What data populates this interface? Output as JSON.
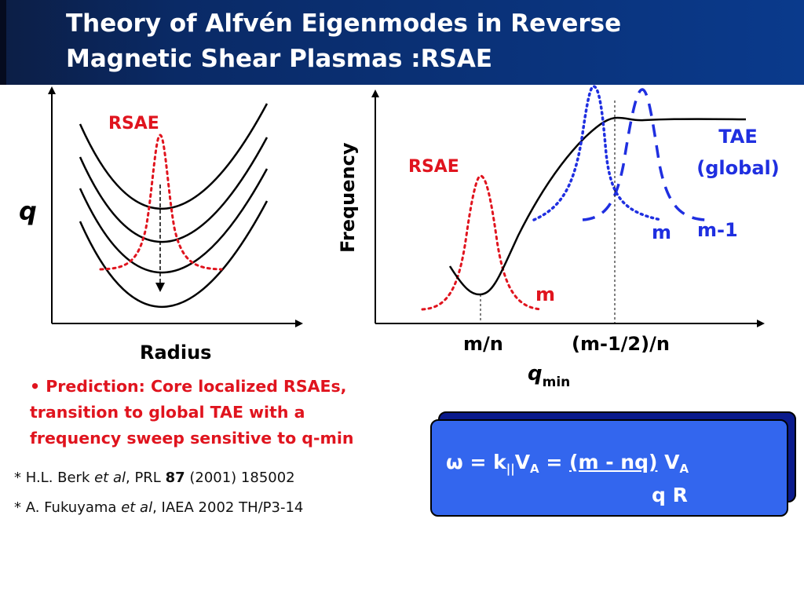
{
  "slide": {
    "title_line1": "Theory of Alfvén Eigenmodes in Reverse",
    "title_line2": "Magnetic Shear Plasmas :RSAE"
  },
  "left_panel": {
    "y_label": "q",
    "x_label": "Radius",
    "mode_label": "RSAE"
  },
  "right_panel": {
    "y_label": "Frequency",
    "rsae_label": "RSAE",
    "tae_label_line1": "TAE",
    "tae_label_line2": "(global)",
    "mode_m_lower": "m",
    "mode_m_upper": "m",
    "mode_m_minus_1": "m-1",
    "tick_left": "m/n",
    "tick_right": "(m-1/2)/n",
    "x_label_main": "q",
    "x_label_sub": "min"
  },
  "bullet": {
    "marker": "•",
    "line1": "Prediction: Core localized RSAEs,",
    "line2": "transition to global TAE with a",
    "line3": "frequency sweep sensitive to q-min"
  },
  "references": [
    {
      "prefix": "* H.L. Berk ",
      "etal": "et al",
      "mid": ", PRL ",
      "vol": "87",
      "rest": " (2001) 185002"
    },
    {
      "prefix": "* A. Fukuyama ",
      "etal": "et al",
      "rest": ", IAEA 2002 TH/P3-14"
    }
  ],
  "formula": {
    "omega": "ω",
    "eq1": " = k",
    "par": "||",
    "va": "V",
    "sub_a": "A",
    "eq2": " = ",
    "numerator": "(m - nq)",
    "va2": " V",
    "sub_a2": "A",
    "denominator": "q R"
  },
  "colors": {
    "title_bg": "#0a3a8c",
    "rsae_red": "#e0141e",
    "tae_blue": "#1f2fe0",
    "formula_bg": "#3366ee",
    "formula_shadow": "#0a1a8c"
  }
}
